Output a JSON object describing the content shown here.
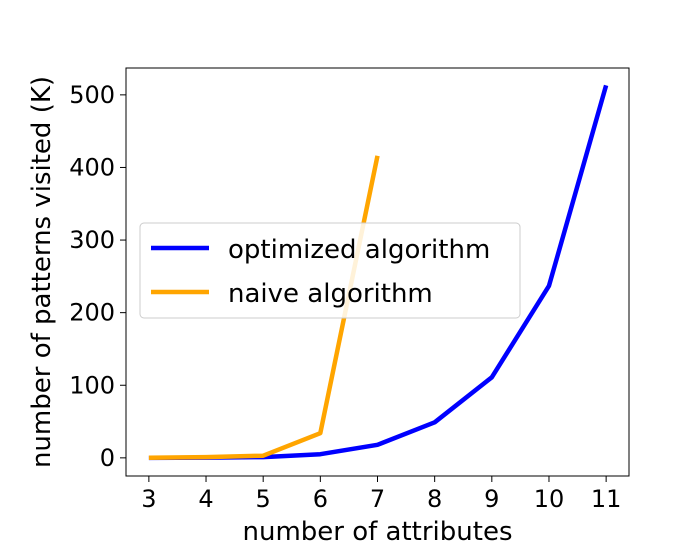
{
  "chart_data": {
    "type": "line",
    "title": "",
    "xlabel": "number of attributes",
    "ylabel": "number of patterns visited (K)",
    "x_ticks": [
      3,
      4,
      5,
      6,
      7,
      8,
      9,
      10,
      11
    ],
    "y_ticks": [
      0,
      100,
      200,
      300,
      400,
      500
    ],
    "xlim": [
      2.6,
      11.4
    ],
    "ylim": [
      -25,
      537
    ],
    "grid": false,
    "legend_position": "center-left",
    "series": [
      {
        "name": "optimized algorithm",
        "color": "#0000ff",
        "x": [
          3,
          4,
          5,
          6,
          7,
          8,
          9,
          10,
          11
        ],
        "y": [
          0,
          0.3,
          1,
          5,
          18,
          49,
          111,
          237,
          513
        ]
      },
      {
        "name": "naive algorithm",
        "color": "#ffa500",
        "x": [
          3,
          4,
          5,
          6,
          7
        ],
        "y": [
          0.2,
          1,
          3,
          34,
          416
        ]
      }
    ]
  }
}
